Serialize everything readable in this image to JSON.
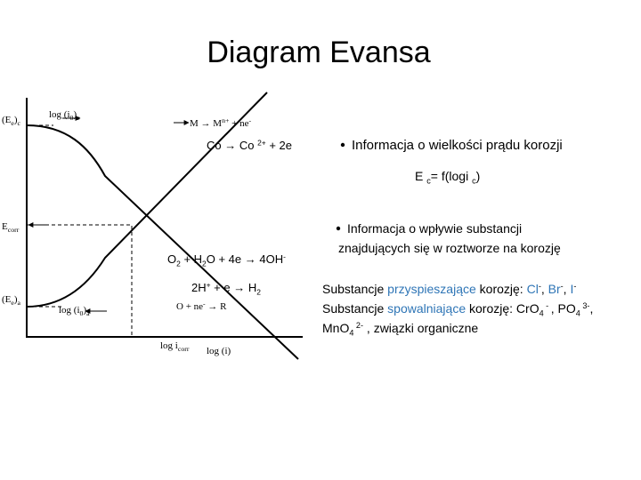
{
  "title": "Diagram Evansa",
  "diagram": {
    "labels": [
      [
        {
          "text": "(E"
        },
        {
          "text": "e",
          "style": "sub"
        },
        {
          "text": ")"
        },
        {
          "text": "c",
          "style": "sub"
        }
      ],
      [
        {
          "text": "log (i"
        },
        {
          "text": "0",
          "style": "sub"
        },
        {
          "text": ")"
        },
        {
          "text": "c",
          "style": "sub"
        }
      ],
      [
        {
          "text": "M → M"
        },
        {
          "text": "n+",
          "style": "sup"
        },
        {
          "text": " + ne"
        },
        {
          "text": "-",
          "style": "sup"
        }
      ],
      [
        {
          "text": "E"
        },
        {
          "text": "corr",
          "style": "sub"
        }
      ],
      [
        {
          "text": "(E"
        },
        {
          "text": "e",
          "style": "sub"
        },
        {
          "text": ")"
        },
        {
          "text": "a",
          "style": "sub"
        }
      ],
      [
        {
          "text": "log (i"
        },
        {
          "text": "0",
          "style": "sub"
        },
        {
          "text": ")"
        },
        {
          "text": "a",
          "style": "sub"
        }
      ],
      [
        {
          "text": "O + ne"
        },
        {
          "text": "-",
          "style": "sup"
        },
        {
          "text": " → R"
        }
      ],
      [
        {
          "text": "log i"
        },
        {
          "text": "corr",
          "style": "sub"
        }
      ],
      [
        {
          "text": "log (i)"
        }
      ]
    ]
  },
  "reactions": [
    [
      {
        "text": "Co → Co "
      },
      {
        "text": "2+",
        "style": "sup"
      },
      {
        "text": " + 2e"
      }
    ],
    [
      {
        "text": "O"
      },
      {
        "text": "2",
        "style": "sub"
      },
      {
        "text": " + H"
      },
      {
        "text": "2",
        "style": "sub"
      },
      {
        "text": "O + 4e → 4OH"
      },
      {
        "text": "-",
        "style": "sup"
      }
    ],
    [
      {
        "text": "2H"
      },
      {
        "text": "+",
        "style": "sup"
      },
      {
        "text": " + e → H"
      },
      {
        "text": "2",
        "style": "sub"
      }
    ]
  ],
  "bullets": [
    [
      {
        "text": "Informacja o wielkości prądu korozji"
      }
    ],
    [
      {
        "text": "E "
      },
      {
        "text": "c",
        "style": "sub"
      },
      {
        "text": "= f(logi "
      },
      {
        "text": "c",
        "style": "sub"
      },
      {
        "text": ")"
      }
    ],
    [
      {
        "text": "Informacja o wpływie substancji"
      }
    ],
    [
      {
        "text": "znajdujących się w roztworze na korozję"
      }
    ]
  ],
  "substances": [
    [
      {
        "text": "Substancje "
      },
      {
        "text": "przyspieszające",
        "style": "accent"
      },
      {
        "text": " korozję: "
      },
      {
        "text": "Cl",
        "style": "accent"
      },
      {
        "text": "-",
        "style": "sup"
      },
      {
        "text": ", "
      },
      {
        "text": "Br",
        "style": "accent"
      },
      {
        "text": "-",
        "style": "sup"
      },
      {
        "text": ", "
      },
      {
        "text": "I",
        "style": "accent"
      },
      {
        "text": "-",
        "style": "sup"
      }
    ],
    [
      {
        "text": "Substancje "
      },
      {
        "text": "spowalniające",
        "style": "accent"
      },
      {
        "text": " korozję: Cr"
      },
      {
        "text": "O"
      },
      {
        "text": "4",
        "style": "sub"
      },
      {
        "text": " - ",
        "style": "sup"
      },
      {
        "text": ", PO"
      },
      {
        "text": "4",
        "style": "sub"
      },
      {
        "text": " 3-",
        "style": "sup"
      },
      {
        "text": ","
      }
    ],
    [
      {
        "text": "Mn"
      },
      {
        "text": "O"
      },
      {
        "text": "4",
        "style": "sub"
      },
      {
        "text": " 2-",
        "style": "sup"
      },
      {
        "text": " , związki organiczne"
      }
    ]
  ]
}
